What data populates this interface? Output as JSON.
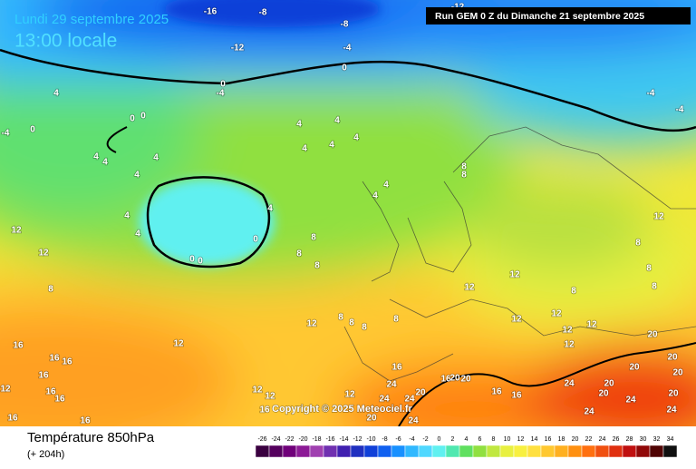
{
  "header": {
    "date": "Lundi 29 septembre 2025",
    "time": "13:00 locale",
    "run": "Run GEM 0 Z du Dimanche 21 septembre 2025"
  },
  "map": {
    "copyright": "Copyright © 2025 Meteociel.fr",
    "contour_labels": [
      -16,
      -8,
      -12,
      -8,
      -4,
      0,
      0,
      -4,
      -12,
      -4,
      -4,
      -4,
      0,
      0,
      0,
      4,
      4,
      4,
      4,
      4,
      4,
      4,
      4,
      4,
      4,
      4,
      0,
      0,
      0,
      4,
      4,
      4,
      4,
      8,
      8,
      8,
      8,
      8,
      12,
      12,
      8,
      12,
      8,
      8,
      8,
      12,
      12,
      8,
      12,
      8,
      8,
      8,
      8,
      12,
      12,
      12,
      12,
      12,
      12,
      16,
      16,
      16,
      16,
      16,
      16,
      16,
      16,
      12,
      12,
      12,
      12,
      16,
      16,
      24,
      24,
      24,
      24,
      20,
      16,
      20,
      20,
      20,
      16,
      16,
      20,
      20,
      20,
      20,
      24,
      20,
      20,
      24,
      20,
      24,
      24
    ]
  },
  "footer": {
    "title": "Température 850hPa",
    "lead": "(+ 204h)"
  },
  "scale": {
    "ticks": [
      -26,
      -24,
      -22,
      -20,
      -18,
      -16,
      -14,
      -12,
      -10,
      -8,
      -6,
      -4,
      -2,
      0,
      2,
      4,
      6,
      8,
      10,
      12,
      14,
      16,
      18,
      20,
      22,
      24,
      26,
      28,
      30,
      32,
      34
    ],
    "colors": [
      "#3a0040",
      "#55005e",
      "#70007a",
      "#8c1a96",
      "#a040b0",
      "#7030b0",
      "#4020b0",
      "#2030c0",
      "#1040d8",
      "#1060f0",
      "#1890ff",
      "#30b8ff",
      "#50d8ff",
      "#60f0f0",
      "#50e8b0",
      "#60e060",
      "#90e040",
      "#c0e840",
      "#e8f040",
      "#f8f040",
      "#ffe040",
      "#ffc830",
      "#ffb020",
      "#ff9010",
      "#ff7010",
      "#f05010",
      "#e03010",
      "#c01010",
      "#900808",
      "#500404",
      "#101010"
    ]
  }
}
